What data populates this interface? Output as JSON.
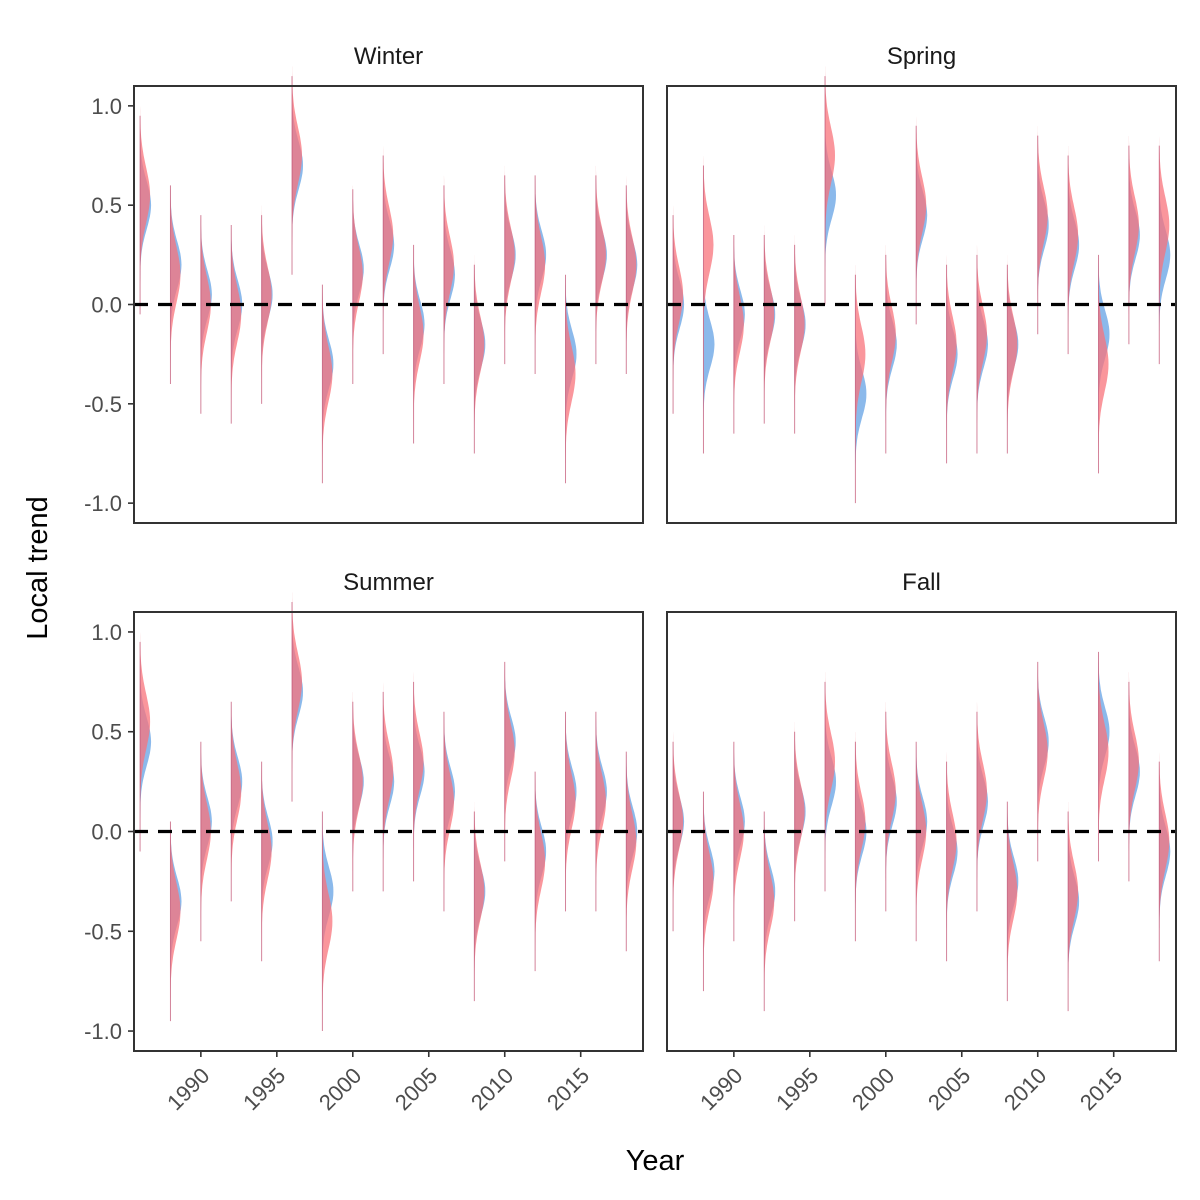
{
  "chart_data": {
    "type": "half-violin (ridgeline) faceted",
    "xlabel": "Year",
    "ylabel": "Local trend",
    "x_ticks": [
      1990,
      1995,
      2000,
      2005,
      2010,
      2015
    ],
    "y_ticks": [
      "-1.0",
      "-0.5",
      "0.0",
      "0.5",
      "1.0"
    ],
    "xlim": [
      1985.6,
      2019.1
    ],
    "ylim": [
      -1.1,
      1.1
    ],
    "reference_line": {
      "y": 0,
      "style": "dashed"
    },
    "series_colors": {
      "red": "#f8737b",
      "blue": "#6ea7e6"
    },
    "panels": [
      {
        "title": "Winter",
        "years": [
          1986,
          1988,
          1990,
          1992,
          1994,
          1996,
          1998,
          2000,
          2002,
          2004,
          2006,
          2008,
          2010,
          2012,
          2014,
          2016,
          2018
        ],
        "red_median": [
          0.55,
          0.15,
          0.0,
          -0.05,
          0.05,
          0.75,
          -0.35,
          0.15,
          0.35,
          -0.15,
          0.2,
          -0.2,
          0.25,
          0.2,
          -0.35,
          0.25,
          0.2
        ],
        "blue_median": [
          0.5,
          0.2,
          0.05,
          0.0,
          0.05,
          0.7,
          -0.3,
          0.18,
          0.3,
          -0.1,
          0.15,
          -0.2,
          0.25,
          0.25,
          -0.25,
          0.25,
          0.2
        ]
      },
      {
        "title": "Spring",
        "years": [
          1986,
          1988,
          1990,
          1992,
          1994,
          1996,
          1998,
          2000,
          2002,
          2004,
          2006,
          2008,
          2010,
          2012,
          2014,
          2016,
          2018
        ],
        "red_median": [
          0.05,
          0.3,
          -0.1,
          -0.05,
          -0.1,
          0.75,
          -0.25,
          -0.15,
          0.5,
          -0.2,
          -0.15,
          -0.2,
          0.45,
          0.35,
          -0.3,
          0.4,
          0.4
        ],
        "blue_median": [
          0.0,
          -0.2,
          -0.05,
          -0.05,
          -0.1,
          0.55,
          -0.45,
          -0.2,
          0.45,
          -0.25,
          -0.2,
          -0.2,
          0.4,
          0.3,
          -0.15,
          0.35,
          0.25
        ]
      },
      {
        "title": "Summer",
        "years": [
          1986,
          1988,
          1990,
          1992,
          1994,
          1996,
          1998,
          2000,
          2002,
          2004,
          2006,
          2008,
          2010,
          2012,
          2014,
          2016,
          2018
        ],
        "red_median": [
          0.55,
          -0.4,
          0.0,
          0.2,
          -0.1,
          0.75,
          -0.45,
          0.25,
          0.3,
          0.35,
          0.15,
          -0.3,
          0.4,
          -0.15,
          0.15,
          0.15,
          -0.05
        ],
        "blue_median": [
          0.45,
          -0.35,
          0.05,
          0.25,
          -0.05,
          0.7,
          -0.3,
          0.25,
          0.25,
          0.3,
          0.2,
          -0.3,
          0.45,
          -0.1,
          0.2,
          0.2,
          0.0
        ]
      },
      {
        "title": "Fall",
        "years": [
          1986,
          1988,
          1990,
          1992,
          1994,
          1996,
          1998,
          2000,
          2002,
          2004,
          2006,
          2008,
          2010,
          2012,
          2014,
          2016,
          2018
        ],
        "red_median": [
          0.05,
          -0.25,
          0.0,
          -0.35,
          0.1,
          0.35,
          0.05,
          0.2,
          0.0,
          -0.05,
          0.2,
          -0.3,
          0.4,
          -0.3,
          0.4,
          0.35,
          -0.05
        ],
        "blue_median": [
          0.05,
          -0.2,
          0.05,
          -0.3,
          0.1,
          0.25,
          0.0,
          0.15,
          0.05,
          -0.1,
          0.15,
          -0.25,
          0.45,
          -0.35,
          0.5,
          0.3,
          -0.1
        ]
      }
    ]
  }
}
